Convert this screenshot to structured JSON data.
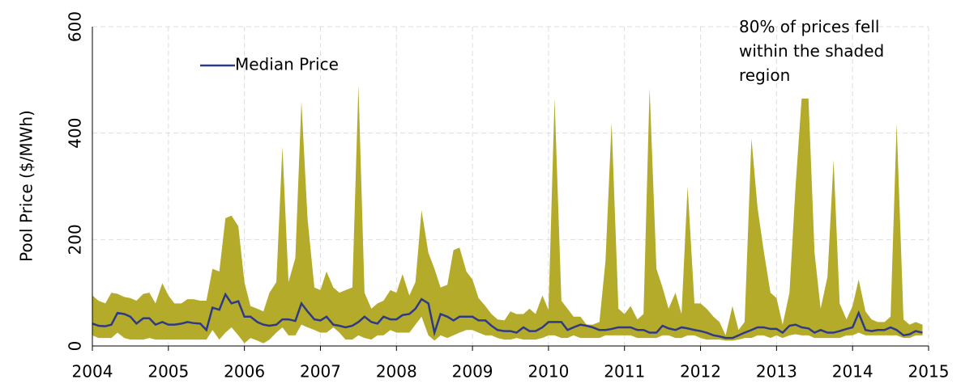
{
  "chart_data": {
    "type": "band-line",
    "y_label": "Pool Price ($/MWh)",
    "annotation": "80% of prices fell within the shaded region",
    "xlim": [
      2004,
      2015
    ],
    "xticks": [
      2004,
      2005,
      2006,
      2007,
      2008,
      2009,
      2010,
      2011,
      2012,
      2013,
      2014,
      2015
    ],
    "ylim": [
      0,
      600
    ],
    "yticks": [
      0,
      200,
      400,
      600
    ],
    "grid": true,
    "x": [
      2004,
      2004.08,
      2004.17,
      2004.25,
      2004.33,
      2004.42,
      2004.5,
      2004.58,
      2004.67,
      2004.75,
      2004.83,
      2004.92,
      2005,
      2005.08,
      2005.17,
      2005.25,
      2005.33,
      2005.42,
      2005.5,
      2005.58,
      2005.67,
      2005.75,
      2005.83,
      2005.92,
      2006,
      2006.08,
      2006.17,
      2006.25,
      2006.33,
      2006.42,
      2006.5,
      2006.58,
      2006.67,
      2006.75,
      2006.83,
      2006.92,
      2007,
      2007.08,
      2007.17,
      2007.25,
      2007.33,
      2007.42,
      2007.5,
      2007.58,
      2007.67,
      2007.75,
      2007.83,
      2007.92,
      2008,
      2008.08,
      2008.17,
      2008.25,
      2008.33,
      2008.42,
      2008.5,
      2008.58,
      2008.67,
      2008.75,
      2008.83,
      2008.92,
      2009,
      2009.08,
      2009.17,
      2009.25,
      2009.33,
      2009.42,
      2009.5,
      2009.58,
      2009.67,
      2009.75,
      2009.83,
      2009.92,
      2010,
      2010.08,
      2010.17,
      2010.25,
      2010.33,
      2010.42,
      2010.5,
      2010.58,
      2010.67,
      2010.75,
      2010.83,
      2010.92,
      2011,
      2011.08,
      2011.17,
      2011.25,
      2011.33,
      2011.42,
      2011.5,
      2011.58,
      2011.67,
      2011.75,
      2011.83,
      2011.92,
      2012,
      2012.08,
      2012.17,
      2012.25,
      2012.33,
      2012.42,
      2012.5,
      2012.58,
      2012.67,
      2012.75,
      2012.83,
      2012.92,
      2013,
      2013.08,
      2013.17,
      2013.25,
      2013.33,
      2013.42,
      2013.5,
      2013.58,
      2013.67,
      2013.75,
      2013.83,
      2013.92,
      2014,
      2014.08,
      2014.17,
      2014.25,
      2014.33,
      2014.42,
      2014.5,
      2014.58,
      2014.67,
      2014.75,
      2014.83,
      2014.92
    ],
    "band": {
      "color": "#b5ab2b",
      "high": [
        95,
        85,
        80,
        100,
        98,
        92,
        90,
        85,
        98,
        100,
        80,
        118,
        95,
        80,
        80,
        88,
        88,
        85,
        85,
        145,
        140,
        240,
        245,
        225,
        120,
        75,
        70,
        65,
        100,
        120,
        375,
        120,
        165,
        460,
        240,
        110,
        105,
        140,
        110,
        100,
        105,
        110,
        490,
        100,
        70,
        80,
        85,
        105,
        100,
        135,
        95,
        120,
        255,
        175,
        145,
        110,
        115,
        180,
        185,
        140,
        125,
        90,
        75,
        60,
        50,
        48,
        65,
        60,
        60,
        70,
        60,
        95,
        68,
        465,
        85,
        70,
        55,
        55,
        40,
        40,
        45,
        160,
        420,
        70,
        60,
        75,
        50,
        60,
        485,
        145,
        110,
        70,
        100,
        60,
        300,
        80,
        80,
        70,
        55,
        45,
        20,
        75,
        30,
        45,
        390,
        260,
        180,
        100,
        90,
        40,
        100,
        300,
        465,
        465,
        175,
        70,
        130,
        350,
        80,
        50,
        75,
        125,
        65,
        50,
        45,
        45,
        55,
        418,
        50,
        40,
        45,
        40
      ],
      "low": [
        20,
        15,
        15,
        15,
        25,
        15,
        12,
        12,
        12,
        15,
        12,
        12,
        12,
        12,
        12,
        12,
        12,
        12,
        12,
        30,
        12,
        25,
        35,
        20,
        5,
        15,
        10,
        5,
        12,
        25,
        35,
        20,
        20,
        40,
        35,
        30,
        25,
        25,
        35,
        25,
        12,
        12,
        20,
        15,
        12,
        20,
        20,
        30,
        25,
        25,
        25,
        40,
        55,
        20,
        10,
        20,
        15,
        20,
        25,
        30,
        30,
        25,
        20,
        20,
        15,
        12,
        12,
        15,
        12,
        12,
        12,
        15,
        20,
        20,
        15,
        15,
        20,
        15,
        15,
        15,
        15,
        20,
        20,
        20,
        20,
        20,
        15,
        15,
        15,
        15,
        20,
        20,
        15,
        15,
        20,
        20,
        15,
        12,
        12,
        12,
        10,
        10,
        12,
        15,
        15,
        20,
        20,
        15,
        20,
        15,
        20,
        22,
        20,
        20,
        15,
        15,
        15,
        15,
        15,
        20,
        20,
        25,
        20,
        20,
        20,
        20,
        20,
        20,
        15,
        15,
        20,
        20
      ]
    },
    "series": [
      {
        "name": "Median Price",
        "color": "#2e3a87",
        "values": [
          42,
          38,
          37,
          40,
          62,
          60,
          55,
          42,
          52,
          52,
          40,
          45,
          40,
          40,
          42,
          45,
          43,
          42,
          30,
          72,
          68,
          97,
          80,
          84,
          55,
          55,
          45,
          40,
          38,
          40,
          50,
          50,
          47,
          80,
          65,
          50,
          48,
          55,
          40,
          38,
          35,
          38,
          45,
          55,
          45,
          42,
          55,
          50,
          50,
          58,
          60,
          70,
          88,
          80,
          25,
          60,
          55,
          48,
          55,
          55,
          55,
          48,
          48,
          38,
          30,
          28,
          28,
          25,
          35,
          28,
          28,
          35,
          45,
          45,
          45,
          30,
          35,
          40,
          38,
          35,
          30,
          30,
          32,
          35,
          35,
          35,
          30,
          30,
          25,
          25,
          38,
          33,
          30,
          35,
          33,
          30,
          28,
          25,
          20,
          18,
          15,
          15,
          20,
          25,
          30,
          35,
          35,
          32,
          32,
          25,
          38,
          40,
          35,
          33,
          25,
          30,
          25,
          25,
          28,
          32,
          35,
          62,
          30,
          28,
          30,
          30,
          35,
          30,
          20,
          22,
          28,
          25
        ]
      }
    ]
  }
}
